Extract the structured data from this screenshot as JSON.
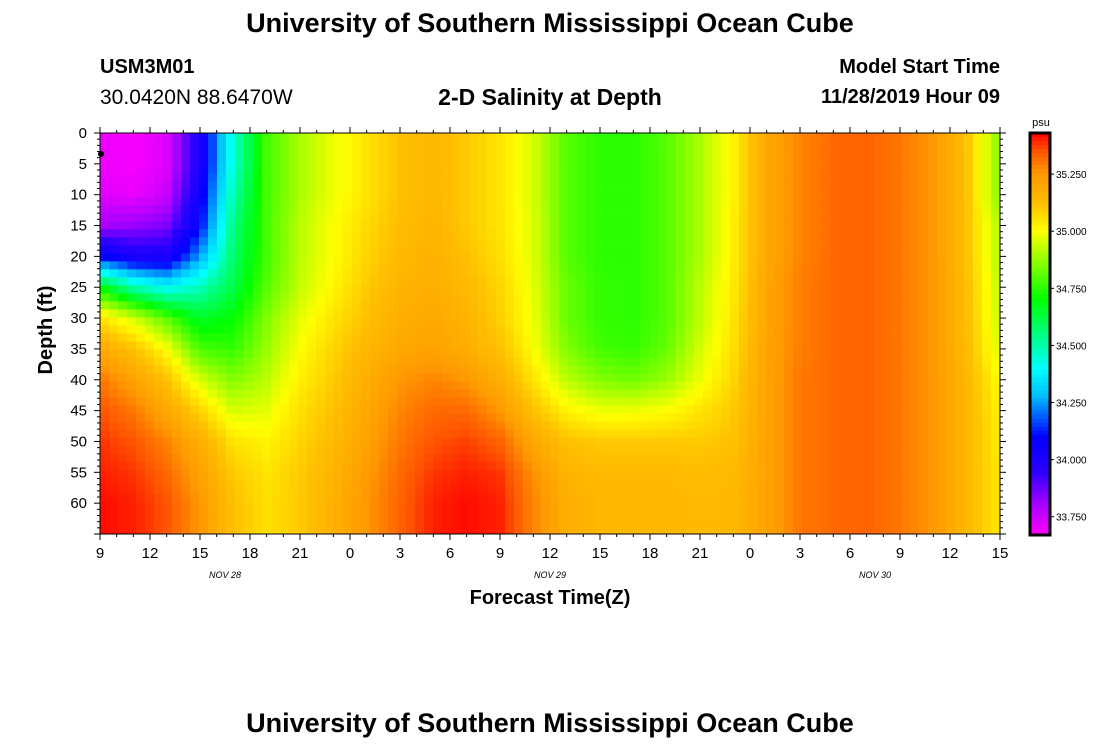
{
  "header": {
    "title": "University of Southern Mississippi Ocean Cube",
    "station_id": "USM3M01",
    "location": "30.0420N 88.6470W",
    "plot_title": "2-D Salinity at Depth",
    "model_start_label": "Model Start Time",
    "model_start_value": "11/28/2019 Hour 09"
  },
  "footer": {
    "title": "University of Southern Mississippi Ocean Cube"
  },
  "chart_data": {
    "type": "heatmap",
    "title": "2-D Salinity at Depth",
    "xlabel": "Forecast Time(Z)",
    "ylabel": "Depth (ft)",
    "x_hours": [
      0,
      3,
      6,
      9,
      12,
      15,
      18,
      21,
      24,
      27,
      30,
      33,
      36,
      39,
      42,
      45,
      48,
      51,
      54
    ],
    "x_tick_labels": [
      "9",
      "12",
      "15",
      "18",
      "21",
      "0",
      "3",
      "6",
      "9",
      "12",
      "15",
      "18",
      "21",
      "0",
      "3",
      "6",
      "9",
      "12",
      "15"
    ],
    "xlim": [
      0,
      54
    ],
    "date_labels": [
      {
        "text": "NOV 28",
        "hour": 7.5
      },
      {
        "text": "NOV 29",
        "hour": 27
      },
      {
        "text": "NOV 30",
        "hour": 46.5
      }
    ],
    "y_ticks": [
      0,
      5,
      10,
      15,
      20,
      25,
      30,
      35,
      40,
      45,
      50,
      55,
      60
    ],
    "ylim": [
      0,
      65
    ],
    "colorbar": {
      "unit": "psu",
      "min": 33.67,
      "max": 35.43,
      "ticks": [
        33.75,
        34.0,
        34.25,
        34.5,
        34.75,
        35.0,
        35.25
      ],
      "tick_labels": [
        "33.750",
        "34.000",
        "34.250",
        "34.500",
        "34.750",
        "35.000",
        "35.250"
      ]
    },
    "grid": {
      "hours": [
        0,
        2,
        4,
        6,
        8,
        10,
        12,
        14,
        16,
        18,
        20,
        22,
        24,
        26,
        28,
        30,
        32,
        34,
        36,
        38,
        40,
        42,
        44,
        46,
        48,
        50,
        52,
        54
      ],
      "depths": [
        0,
        5,
        10,
        15,
        20,
        25,
        30,
        35,
        40,
        45,
        50,
        55,
        60,
        65
      ],
      "values": [
        [
          33.7,
          33.68,
          33.72,
          34.0,
          34.45,
          34.78,
          34.9,
          34.98,
          35.05,
          35.12,
          35.15,
          35.1,
          35.05,
          34.95,
          34.8,
          34.75,
          34.75,
          34.8,
          34.9,
          35.02,
          35.2,
          35.28,
          35.32,
          35.33,
          35.3,
          35.25,
          35.12,
          34.85
        ],
        [
          33.7,
          33.68,
          33.72,
          34.0,
          34.45,
          34.78,
          34.9,
          34.98,
          35.05,
          35.12,
          35.15,
          35.1,
          35.05,
          34.95,
          34.8,
          34.75,
          34.75,
          34.8,
          34.9,
          35.02,
          35.2,
          35.28,
          35.32,
          35.33,
          35.3,
          35.25,
          35.12,
          34.85
        ],
        [
          33.72,
          33.7,
          33.75,
          34.05,
          34.5,
          34.78,
          34.9,
          34.98,
          35.05,
          35.12,
          35.15,
          35.1,
          35.05,
          34.95,
          34.8,
          34.75,
          34.75,
          34.8,
          34.9,
          35.02,
          35.2,
          35.28,
          35.32,
          35.33,
          35.3,
          35.25,
          35.12,
          34.85
        ],
        [
          33.8,
          33.82,
          33.85,
          34.1,
          34.55,
          34.78,
          34.92,
          35.0,
          35.07,
          35.13,
          35.16,
          35.1,
          35.05,
          34.96,
          34.8,
          34.75,
          34.75,
          34.8,
          34.9,
          35.03,
          35.2,
          35.28,
          35.32,
          35.33,
          35.3,
          35.25,
          35.12,
          34.9
        ],
        [
          34.1,
          34.0,
          34.0,
          34.25,
          34.58,
          34.78,
          34.92,
          35.0,
          35.08,
          35.14,
          35.17,
          35.12,
          35.06,
          34.96,
          34.8,
          34.75,
          34.75,
          34.8,
          34.9,
          35.03,
          35.2,
          35.28,
          35.32,
          35.33,
          35.3,
          35.25,
          35.12,
          34.9
        ],
        [
          34.7,
          34.5,
          34.4,
          34.48,
          34.62,
          34.8,
          34.93,
          35.02,
          35.1,
          35.16,
          35.18,
          35.14,
          35.08,
          34.97,
          34.82,
          34.76,
          34.75,
          34.8,
          34.92,
          35.04,
          35.21,
          35.29,
          35.32,
          35.33,
          35.3,
          35.25,
          35.13,
          34.92
        ],
        [
          35.05,
          34.95,
          34.8,
          34.65,
          34.7,
          34.85,
          34.97,
          35.05,
          35.12,
          35.18,
          35.2,
          35.16,
          35.09,
          34.98,
          34.82,
          34.76,
          34.75,
          34.8,
          34.92,
          35.05,
          35.21,
          35.29,
          35.32,
          35.33,
          35.3,
          35.25,
          35.13,
          34.93
        ],
        [
          35.2,
          35.12,
          35.0,
          34.78,
          34.76,
          34.88,
          35.0,
          35.08,
          35.15,
          35.2,
          35.22,
          35.18,
          35.12,
          35.0,
          34.85,
          34.78,
          34.76,
          34.82,
          34.95,
          35.06,
          35.22,
          35.29,
          35.32,
          35.33,
          35.3,
          35.25,
          35.14,
          34.95
        ],
        [
          35.3,
          35.22,
          35.12,
          34.95,
          34.85,
          34.92,
          35.03,
          35.1,
          35.18,
          35.25,
          35.28,
          35.25,
          35.18,
          35.05,
          34.92,
          34.85,
          34.83,
          34.88,
          34.98,
          35.08,
          35.22,
          35.3,
          35.32,
          35.33,
          35.3,
          35.25,
          35.15,
          35.0
        ],
        [
          35.35,
          35.3,
          35.2,
          35.08,
          34.95,
          34.97,
          35.06,
          35.12,
          35.2,
          35.28,
          35.32,
          35.32,
          35.25,
          35.12,
          35.02,
          34.98,
          34.98,
          35.0,
          35.05,
          35.1,
          35.22,
          35.3,
          35.32,
          35.33,
          35.3,
          35.25,
          35.15,
          35.02
        ],
        [
          35.38,
          35.35,
          35.28,
          35.18,
          35.05,
          35.02,
          35.08,
          35.14,
          35.22,
          35.3,
          35.35,
          35.37,
          35.33,
          35.2,
          35.12,
          35.1,
          35.1,
          35.1,
          35.1,
          35.12,
          35.22,
          35.3,
          35.32,
          35.33,
          35.3,
          35.25,
          35.15,
          35.03
        ],
        [
          35.4,
          35.38,
          35.32,
          35.22,
          35.1,
          35.05,
          35.1,
          35.16,
          35.24,
          35.32,
          35.38,
          35.4,
          35.38,
          35.26,
          35.16,
          35.14,
          35.14,
          35.14,
          35.13,
          35.14,
          35.22,
          35.3,
          35.32,
          35.33,
          35.3,
          35.25,
          35.15,
          35.04
        ],
        [
          35.42,
          35.4,
          35.35,
          35.25,
          35.12,
          35.06,
          35.1,
          35.17,
          35.25,
          35.33,
          35.4,
          35.42,
          35.4,
          35.28,
          35.18,
          35.15,
          35.15,
          35.15,
          35.14,
          35.15,
          35.22,
          35.3,
          35.32,
          35.33,
          35.3,
          35.25,
          35.15,
          35.04
        ],
        [
          35.42,
          35.4,
          35.35,
          35.25,
          35.12,
          35.06,
          35.1,
          35.17,
          35.25,
          35.33,
          35.4,
          35.42,
          35.4,
          35.28,
          35.18,
          35.15,
          35.15,
          35.15,
          35.14,
          35.15,
          35.22,
          35.3,
          35.32,
          35.33,
          35.3,
          35.25,
          35.15,
          35.04
        ]
      ]
    },
    "colormap": [
      {
        "value": 33.67,
        "color": "#ff00ff"
      },
      {
        "value": 33.8,
        "color": "#aa00ff"
      },
      {
        "value": 33.95,
        "color": "#2a00ff"
      },
      {
        "value": 34.1,
        "color": "#0000ff"
      },
      {
        "value": 34.28,
        "color": "#00c0ff"
      },
      {
        "value": 34.4,
        "color": "#00ffff"
      },
      {
        "value": 34.55,
        "color": "#00ff80"
      },
      {
        "value": 34.7,
        "color": "#00ff00"
      },
      {
        "value": 34.85,
        "color": "#80ff00"
      },
      {
        "value": 35.0,
        "color": "#ffff00"
      },
      {
        "value": 35.12,
        "color": "#ffc000"
      },
      {
        "value": 35.25,
        "color": "#ff9900"
      },
      {
        "value": 35.35,
        "color": "#ff5500"
      },
      {
        "value": 35.43,
        "color": "#ff0000"
      }
    ]
  }
}
